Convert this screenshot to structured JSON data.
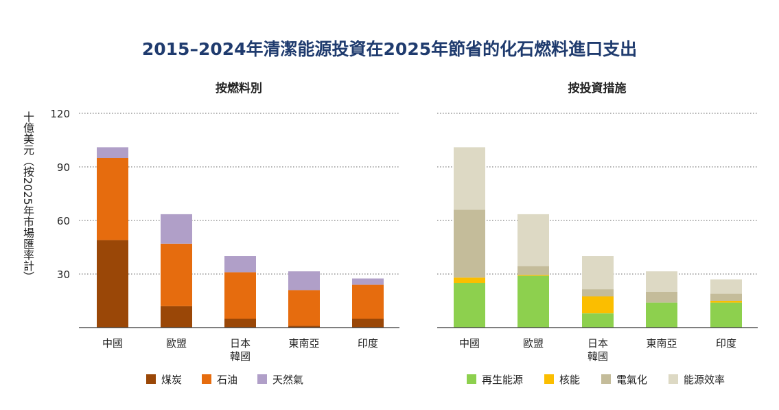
{
  "title": "2015–2024年清潔能源投資在2025年節省的化石燃料進口支出",
  "ylabel": "十億美元（按2025年市場匯率計）",
  "colors": {
    "coal": "#9a4707",
    "oil": "#e66c0e",
    "gas": "#b09fc8",
    "renewables": "#8dd04e",
    "nuclear": "#fbbe00",
    "electrification": "#c4bc9a",
    "efficiency": "#ddd9c4"
  },
  "chart_data": [
    {
      "type": "bar",
      "stacked": true,
      "title": "按燃料別",
      "categories": [
        "中國",
        "歐盟",
        "日本\n韓國",
        "東南亞",
        "印度"
      ],
      "ylim": [
        0,
        120
      ],
      "yticks": [
        30,
        60,
        90,
        120
      ],
      "grid": true,
      "legend_position": "bottom",
      "series": [
        {
          "key": "coal",
          "name": "煤炭",
          "values": [
            49,
            12,
            5,
            1,
            5
          ]
        },
        {
          "key": "oil",
          "name": "石油",
          "values": [
            46,
            35,
            26,
            20,
            19
          ]
        },
        {
          "key": "gas",
          "name": "天然氣",
          "values": [
            6,
            16.5,
            9,
            10.5,
            3.5
          ]
        }
      ]
    },
    {
      "type": "bar",
      "stacked": true,
      "title": "按投資措施",
      "categories": [
        "中國",
        "歐盟",
        "日本\n韓國",
        "東南亞",
        "印度"
      ],
      "ylim": [
        0,
        120
      ],
      "yticks": [
        30,
        60,
        90,
        120
      ],
      "grid": true,
      "legend_position": "bottom",
      "series": [
        {
          "key": "renewables",
          "name": "再生能源",
          "values": [
            25,
            29,
            8,
            14,
            14
          ]
        },
        {
          "key": "nuclear",
          "name": "核能",
          "values": [
            3,
            0.5,
            9.5,
            0,
            1
          ]
        },
        {
          "key": "electrification",
          "name": "電氣化",
          "values": [
            38,
            5,
            4,
            6,
            4
          ]
        },
        {
          "key": "efficiency",
          "name": "能源效率",
          "values": [
            35,
            29,
            18.5,
            11.5,
            8
          ]
        }
      ]
    }
  ]
}
